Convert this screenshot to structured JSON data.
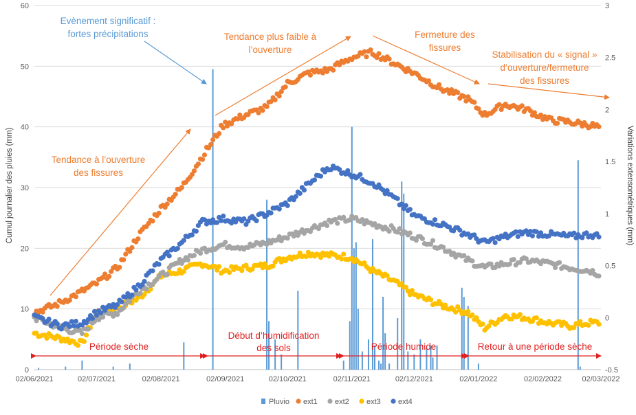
{
  "chart_data": {
    "type": "scatter",
    "x_ticks": [
      "02/06/2021",
      "02/07/2021",
      "02/08/2021",
      "02/09/2021",
      "02/10/2021",
      "02/11/2021",
      "02/12/2021",
      "02/01/2022",
      "02/02/2022",
      "02/03/2022"
    ],
    "ylabel_left": "Cumul  journalier des pluies (mm)",
    "ylabel_right": "Variations extensométriques (mm)",
    "ylim_left": [
      0,
      60
    ],
    "ylim_right": [
      -0.5,
      3
    ],
    "y_ticks_left": [
      "0",
      "10",
      "20",
      "30",
      "40",
      "50",
      "60"
    ],
    "y_ticks_right": [
      "-0.5",
      "0",
      "0.5",
      "1",
      "1.5",
      "2",
      "2.5",
      "3"
    ],
    "grid": "horizontal",
    "legend_position": "bottom",
    "colors": {
      "Pluvio": "#5b9bd5",
      "ext1": "#ed7d31",
      "ext2": "#a5a5a5",
      "ext3": "#ffc000",
      "ext4": "#4472c4"
    },
    "series": [
      {
        "name": "ext1",
        "axis": "right",
        "points": [
          [
            "2021-06-02",
            0.05
          ],
          [
            "2021-06-12",
            0.12
          ],
          [
            "2021-06-22",
            0.22
          ],
          [
            "2021-07-02",
            0.33
          ],
          [
            "2021-07-12",
            0.48
          ],
          [
            "2021-07-22",
            0.78
          ],
          [
            "2021-08-02",
            1.05
          ],
          [
            "2021-08-12",
            1.25
          ],
          [
            "2021-08-22",
            1.55
          ],
          [
            "2021-09-01",
            1.85
          ],
          [
            "2021-09-12",
            1.95
          ],
          [
            "2021-09-22",
            2.02
          ],
          [
            "2021-10-02",
            2.25
          ],
          [
            "2021-10-12",
            2.35
          ],
          [
            "2021-10-22",
            2.38
          ],
          [
            "2021-11-02",
            2.5
          ],
          [
            "2021-11-12",
            2.55
          ],
          [
            "2021-11-22",
            2.45
          ],
          [
            "2021-12-02",
            2.35
          ],
          [
            "2021-12-15",
            2.2
          ],
          [
            "2021-12-28",
            2.1
          ],
          [
            "2022-01-05",
            1.95
          ],
          [
            "2022-01-15",
            2.05
          ],
          [
            "2022-01-25",
            2.0
          ],
          [
            "2022-02-05",
            1.9
          ],
          [
            "2022-02-15",
            1.88
          ],
          [
            "2022-02-25",
            1.85
          ],
          [
            "2022-03-01",
            1.83
          ]
        ]
      },
      {
        "name": "ext2",
        "axis": "right",
        "points": [
          [
            "2021-06-02",
            0.0
          ],
          [
            "2021-06-15",
            -0.1
          ],
          [
            "2021-06-25",
            -0.15
          ],
          [
            "2021-07-02",
            0.0
          ],
          [
            "2021-07-12",
            0.05
          ],
          [
            "2021-07-22",
            0.25
          ],
          [
            "2021-08-02",
            0.4
          ],
          [
            "2021-08-12",
            0.55
          ],
          [
            "2021-08-22",
            0.65
          ],
          [
            "2021-09-01",
            0.7
          ],
          [
            "2021-09-12",
            0.68
          ],
          [
            "2021-09-22",
            0.72
          ],
          [
            "2021-10-02",
            0.78
          ],
          [
            "2021-10-12",
            0.85
          ],
          [
            "2021-10-22",
            0.92
          ],
          [
            "2021-11-02",
            0.95
          ],
          [
            "2021-11-12",
            0.9
          ],
          [
            "2021-11-22",
            0.85
          ],
          [
            "2021-12-02",
            0.78
          ],
          [
            "2021-12-15",
            0.68
          ],
          [
            "2021-12-28",
            0.55
          ],
          [
            "2022-01-05",
            0.48
          ],
          [
            "2022-01-15",
            0.52
          ],
          [
            "2022-01-25",
            0.55
          ],
          [
            "2022-02-05",
            0.52
          ],
          [
            "2022-02-15",
            0.48
          ],
          [
            "2022-02-25",
            0.45
          ],
          [
            "2022-03-01",
            0.42
          ]
        ]
      },
      {
        "name": "ext3",
        "axis": "right",
        "points": [
          [
            "2021-06-02",
            -0.15
          ],
          [
            "2021-06-15",
            -0.2
          ],
          [
            "2021-06-25",
            -0.25
          ],
          [
            "2021-07-02",
            0.05
          ],
          [
            "2021-07-12",
            0.1
          ],
          [
            "2021-07-22",
            0.18
          ],
          [
            "2021-08-02",
            0.4
          ],
          [
            "2021-08-12",
            0.45
          ],
          [
            "2021-08-22",
            0.52
          ],
          [
            "2021-09-01",
            0.45
          ],
          [
            "2021-09-12",
            0.48
          ],
          [
            "2021-09-22",
            0.5
          ],
          [
            "2021-10-02",
            0.58
          ],
          [
            "2021-10-12",
            0.62
          ],
          [
            "2021-10-22",
            0.6
          ],
          [
            "2021-11-02",
            0.58
          ],
          [
            "2021-11-12",
            0.45
          ],
          [
            "2021-11-22",
            0.35
          ],
          [
            "2021-12-02",
            0.22
          ],
          [
            "2021-12-15",
            0.12
          ],
          [
            "2021-12-28",
            0.05
          ],
          [
            "2022-01-05",
            -0.1
          ],
          [
            "2022-01-15",
            0.02
          ],
          [
            "2022-01-25",
            0.0
          ],
          [
            "2022-02-05",
            -0.05
          ],
          [
            "2022-02-15",
            -0.08
          ],
          [
            "2022-02-25",
            -0.05
          ],
          [
            "2022-03-01",
            -0.05
          ]
        ]
      },
      {
        "name": "ext4",
        "axis": "right",
        "points": [
          [
            "2021-06-02",
            0.0
          ],
          [
            "2021-06-15",
            -0.08
          ],
          [
            "2021-06-25",
            -0.05
          ],
          [
            "2021-07-02",
            0.05
          ],
          [
            "2021-07-12",
            0.12
          ],
          [
            "2021-07-22",
            0.3
          ],
          [
            "2021-08-02",
            0.55
          ],
          [
            "2021-08-12",
            0.72
          ],
          [
            "2021-08-22",
            0.92
          ],
          [
            "2021-09-01",
            0.95
          ],
          [
            "2021-09-12",
            0.92
          ],
          [
            "2021-09-22",
            1.0
          ],
          [
            "2021-10-02",
            1.1
          ],
          [
            "2021-10-12",
            1.28
          ],
          [
            "2021-10-22",
            1.45
          ],
          [
            "2021-11-02",
            1.38
          ],
          [
            "2021-11-12",
            1.3
          ],
          [
            "2021-11-22",
            1.15
          ],
          [
            "2021-12-02",
            0.98
          ],
          [
            "2021-12-15",
            0.9
          ],
          [
            "2021-12-28",
            0.8
          ],
          [
            "2022-01-05",
            0.72
          ],
          [
            "2022-01-15",
            0.78
          ],
          [
            "2022-01-25",
            0.82
          ],
          [
            "2022-02-05",
            0.8
          ],
          [
            "2022-02-15",
            0.78
          ],
          [
            "2022-02-25",
            0.8
          ],
          [
            "2022-03-01",
            0.78
          ]
        ]
      },
      {
        "name": "Pluvio",
        "axis": "left",
        "type": "bar",
        "points": [
          [
            "2021-06-04",
            0.3
          ],
          [
            "2021-06-17",
            0.5
          ],
          [
            "2021-06-25",
            1.5
          ],
          [
            "2021-07-10",
            0.5
          ],
          [
            "2021-07-18",
            1.0
          ],
          [
            "2021-08-13",
            4.5
          ],
          [
            "2021-08-27",
            49.5
          ],
          [
            "2021-09-22",
            28.0
          ],
          [
            "2021-09-23",
            8.0
          ],
          [
            "2021-09-26",
            5.0
          ],
          [
            "2021-09-29",
            2.5
          ],
          [
            "2021-10-07",
            13.0
          ],
          [
            "2021-10-29",
            1.5
          ],
          [
            "2021-11-01",
            8.0
          ],
          [
            "2021-11-02",
            40.0
          ],
          [
            "2021-11-03",
            20.0
          ],
          [
            "2021-11-04",
            21.0
          ],
          [
            "2021-11-05",
            10.0
          ],
          [
            "2021-11-07",
            3.0
          ],
          [
            "2021-11-10",
            5.0
          ],
          [
            "2021-11-12",
            21.5
          ],
          [
            "2021-11-13",
            4.0
          ],
          [
            "2021-11-15",
            1.5
          ],
          [
            "2021-11-16",
            1.0
          ],
          [
            "2021-11-17",
            12.0
          ],
          [
            "2021-11-18",
            6.0
          ],
          [
            "2021-11-20",
            1.0
          ],
          [
            "2021-11-24",
            8.5
          ],
          [
            "2021-11-26",
            31.0
          ],
          [
            "2021-11-27",
            29.0
          ],
          [
            "2021-11-29",
            3.0
          ],
          [
            "2021-12-02",
            2.5
          ],
          [
            "2021-12-05",
            5.0
          ],
          [
            "2021-12-08",
            3.5
          ],
          [
            "2021-12-10",
            4.0
          ],
          [
            "2021-12-11",
            2.0
          ],
          [
            "2021-12-13",
            4.0
          ],
          [
            "2021-12-25",
            13.5
          ],
          [
            "2021-12-26",
            12.0
          ],
          [
            "2021-12-28",
            10.5
          ],
          [
            "2022-01-02",
            1.0
          ],
          [
            "2022-02-19",
            34.5
          ],
          [
            "2022-02-20",
            0.5
          ]
        ]
      }
    ],
    "annotations": [
      "Evènement significatif : fortes précipitations",
      "Tendance plus faible à l’ouverture",
      "Fermeture des fissures",
      "Stabilisation du « signal » d’ouverture/fermeture des fissures",
      "Tendance à l’ouverture des fissures"
    ],
    "periods": [
      "Période sèche",
      "Début d’humidification des sols",
      "Période humide",
      "Retour à une période sèche"
    ]
  }
}
